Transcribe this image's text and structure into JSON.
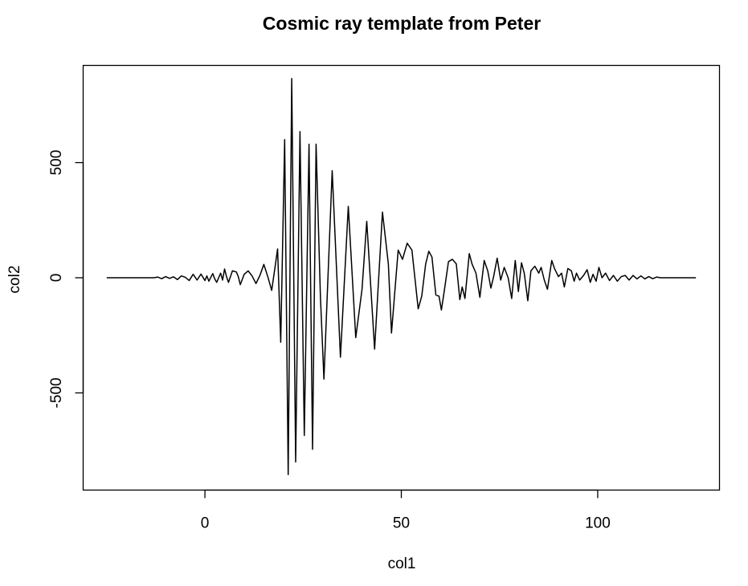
{
  "chart_data": {
    "type": "line",
    "title": "Cosmic ray template from Peter",
    "xlabel": "col1",
    "ylabel": "col2",
    "xlim": [
      -31,
      131
    ],
    "ylim": [
      -922,
      922
    ],
    "x_ticks": [
      0,
      50,
      100
    ],
    "x_tick_labels": [
      "0",
      "50",
      "100"
    ],
    "y_ticks": [
      -500,
      0,
      500
    ],
    "y_tick_labels": [
      "-500",
      "0",
      "500"
    ],
    "grid": false,
    "series": [
      {
        "color": "#000000",
        "points": [
          [
            -25,
            0
          ],
          [
            -13,
            0
          ],
          [
            -12,
            3
          ],
          [
            -11,
            -4
          ],
          [
            -10,
            5
          ],
          [
            -9,
            -3
          ],
          [
            -8,
            4
          ],
          [
            -7,
            -8
          ],
          [
            -6,
            8
          ],
          [
            -5,
            2
          ],
          [
            -4,
            -12
          ],
          [
            -3,
            15
          ],
          [
            -2,
            -10
          ],
          [
            -1,
            16
          ],
          [
            0,
            -12
          ],
          [
            0.5,
            8
          ],
          [
            1,
            -15
          ],
          [
            2,
            18
          ],
          [
            2.5,
            -5
          ],
          [
            3,
            -20
          ],
          [
            4,
            20
          ],
          [
            4.5,
            -10
          ],
          [
            5,
            38
          ],
          [
            5.5,
            5
          ],
          [
            6,
            -20
          ],
          [
            7,
            30
          ],
          [
            8,
            25
          ],
          [
            8.5,
            5
          ],
          [
            9,
            -30
          ],
          [
            10,
            15
          ],
          [
            11,
            30
          ],
          [
            12,
            8
          ],
          [
            13,
            -25
          ],
          [
            14,
            10
          ],
          [
            15,
            58
          ],
          [
            16,
            5
          ],
          [
            17,
            -55
          ],
          [
            17.8,
            40
          ],
          [
            18.5,
            125
          ],
          [
            19.3,
            -280
          ],
          [
            20.3,
            600
          ],
          [
            21.2,
            -855
          ],
          [
            22.1,
            865
          ],
          [
            23.1,
            -800
          ],
          [
            24.2,
            635
          ],
          [
            25.3,
            -685
          ],
          [
            26.5,
            580
          ],
          [
            27.4,
            -745
          ],
          [
            28.3,
            580
          ],
          [
            29.4,
            -80
          ],
          [
            30.3,
            -440
          ],
          [
            32.4,
            465
          ],
          [
            34.5,
            -345
          ],
          [
            36.5,
            310
          ],
          [
            38.4,
            -260
          ],
          [
            40,
            -50
          ],
          [
            41.2,
            245
          ],
          [
            43.2,
            -310
          ],
          [
            45.2,
            285
          ],
          [
            46.7,
            60
          ],
          [
            47.5,
            -240
          ],
          [
            49.2,
            120
          ],
          [
            50.3,
            80
          ],
          [
            51.5,
            150
          ],
          [
            52.7,
            120
          ],
          [
            54.3,
            -135
          ],
          [
            55.2,
            -80
          ],
          [
            56.2,
            60
          ],
          [
            57,
            115
          ],
          [
            57.8,
            90
          ],
          [
            58.8,
            -75
          ],
          [
            59.6,
            -80
          ],
          [
            60.2,
            -140
          ],
          [
            61,
            -50
          ],
          [
            62,
            70
          ],
          [
            63,
            80
          ],
          [
            64,
            60
          ],
          [
            64.9,
            -95
          ],
          [
            65.5,
            -40
          ],
          [
            66.2,
            -90
          ],
          [
            67.3,
            105
          ],
          [
            68,
            60
          ],
          [
            69,
            20
          ],
          [
            70,
            -85
          ],
          [
            71.1,
            75
          ],
          [
            72,
            30
          ],
          [
            72.8,
            -45
          ],
          [
            73.5,
            5
          ],
          [
            74.4,
            85
          ],
          [
            75.3,
            -10
          ],
          [
            76.2,
            45
          ],
          [
            77.2,
            0
          ],
          [
            78.1,
            -90
          ],
          [
            79,
            75
          ],
          [
            79.8,
            -60
          ],
          [
            80.6,
            65
          ],
          [
            81.3,
            20
          ],
          [
            82.2,
            -100
          ],
          [
            83,
            30
          ],
          [
            84,
            50
          ],
          [
            85,
            20
          ],
          [
            85.6,
            45
          ],
          [
            86.4,
            -10
          ],
          [
            87.2,
            -50
          ],
          [
            88.3,
            75
          ],
          [
            89,
            40
          ],
          [
            90,
            5
          ],
          [
            90.8,
            20
          ],
          [
            91.5,
            -40
          ],
          [
            92.4,
            40
          ],
          [
            93.3,
            30
          ],
          [
            94,
            -15
          ],
          [
            94.6,
            20
          ],
          [
            95.4,
            -10
          ],
          [
            96.4,
            10
          ],
          [
            97.3,
            35
          ],
          [
            98.1,
            -20
          ],
          [
            98.8,
            15
          ],
          [
            99.6,
            -15
          ],
          [
            100.3,
            45
          ],
          [
            101.1,
            0
          ],
          [
            102,
            20
          ],
          [
            103,
            -12
          ],
          [
            104,
            10
          ],
          [
            105,
            -15
          ],
          [
            106,
            5
          ],
          [
            107,
            10
          ],
          [
            108,
            -10
          ],
          [
            109,
            10
          ],
          [
            110,
            -5
          ],
          [
            111,
            8
          ],
          [
            112,
            -5
          ],
          [
            113,
            5
          ],
          [
            114,
            -4
          ],
          [
            115,
            3
          ],
          [
            116,
            0
          ],
          [
            125,
            0
          ]
        ]
      }
    ]
  }
}
